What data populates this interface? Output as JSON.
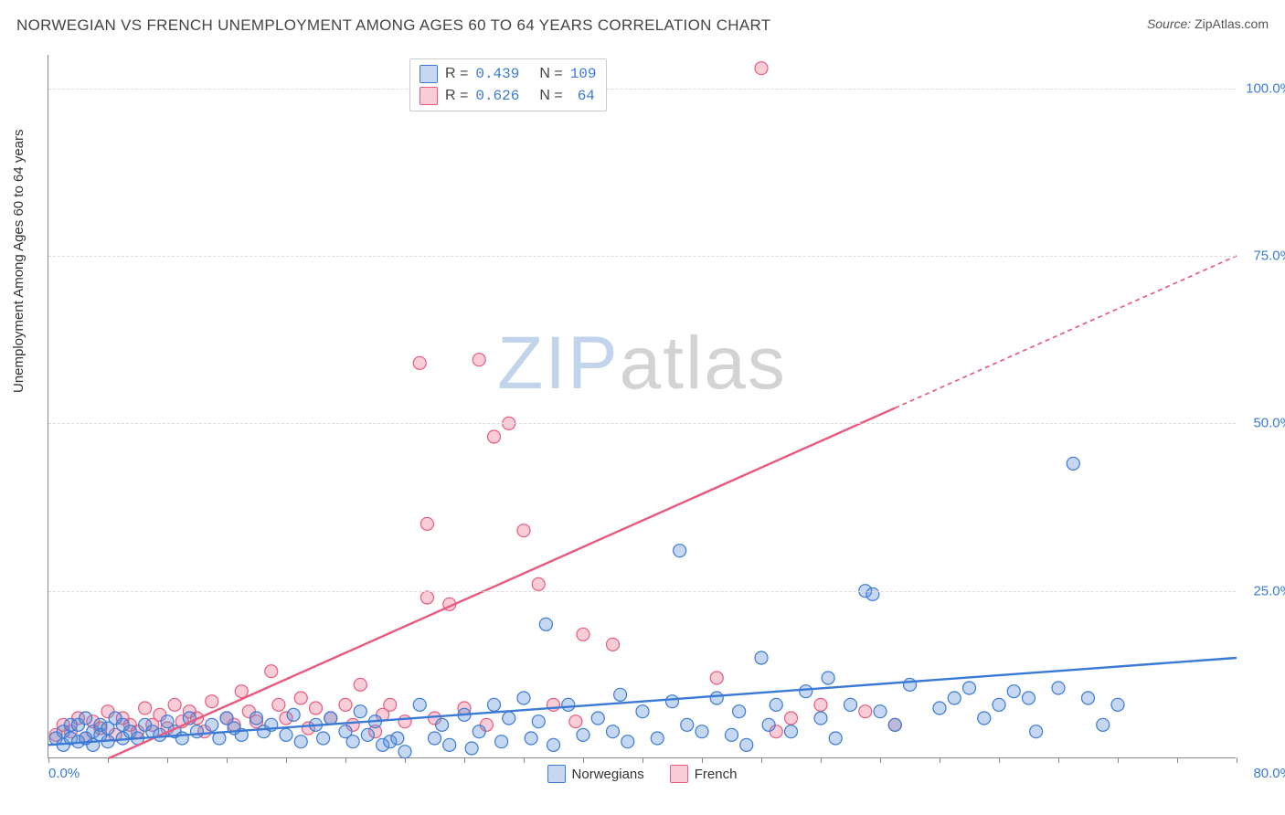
{
  "title": "NORWEGIAN VS FRENCH UNEMPLOYMENT AMONG AGES 60 TO 64 YEARS CORRELATION CHART",
  "source_label": "Source:",
  "source_value": "ZipAtlas.com",
  "y_axis_label": "Unemployment Among Ages 60 to 64 years",
  "watermark_a": "ZIP",
  "watermark_b": "atlas",
  "chart": {
    "type": "scatter",
    "background_color": "#ffffff",
    "grid_color": "#dddddd",
    "grid_dash": "4,4",
    "axis_color": "#888888",
    "xlim": [
      0,
      80
    ],
    "ylim": [
      0,
      105
    ],
    "xtick_major": [
      0,
      80
    ],
    "xtick_minor_step": 4,
    "xtick_labels": [
      "0.0%",
      "80.0%"
    ],
    "ytick_positions": [
      25,
      50,
      75,
      100
    ],
    "ytick_labels": [
      "25.0%",
      "50.0%",
      "75.0%",
      "100.0%"
    ],
    "tick_label_color": "#3a7ad6",
    "tick_label_fontsize": 15,
    "title_fontsize": 17,
    "title_color": "#444444",
    "marker_radius": 7,
    "marker_stroke_width": 1.2,
    "marker_fill_opacity": 0.35,
    "line_width_solid": 2.4,
    "line_dash_extrapolate": "5,4"
  },
  "series": {
    "norwegians": {
      "label": "Norwegians",
      "color": "#5b8fd6",
      "fill": "rgba(91,143,214,0.35)",
      "stroke": "#3a7ad6",
      "R": "0.439",
      "N": "109",
      "trend": {
        "x1": 0,
        "y1": 2,
        "x2": 80,
        "y2": 15,
        "solid_until_x": 80
      },
      "points": [
        [
          0.5,
          3
        ],
        [
          1,
          4
        ],
        [
          1,
          2
        ],
        [
          1.5,
          5
        ],
        [
          1.5,
          3
        ],
        [
          2,
          5
        ],
        [
          2,
          2.5
        ],
        [
          2.5,
          6
        ],
        [
          2.5,
          3
        ],
        [
          3,
          4
        ],
        [
          3,
          2
        ],
        [
          3.5,
          5
        ],
        [
          3.5,
          3.5
        ],
        [
          4,
          4.5
        ],
        [
          4,
          2.5
        ],
        [
          4.5,
          6
        ],
        [
          5,
          3
        ],
        [
          5,
          5
        ],
        [
          5.5,
          4
        ],
        [
          6,
          3
        ],
        [
          6.5,
          5
        ],
        [
          7,
          4
        ],
        [
          7.5,
          3.5
        ],
        [
          8,
          5.5
        ],
        [
          8.5,
          4
        ],
        [
          9,
          3
        ],
        [
          9.5,
          6
        ],
        [
          10,
          4
        ],
        [
          11,
          5
        ],
        [
          11.5,
          3
        ],
        [
          12,
          6
        ],
        [
          12.5,
          4.5
        ],
        [
          13,
          3.5
        ],
        [
          14,
          6
        ],
        [
          14.5,
          4
        ],
        [
          15,
          5
        ],
        [
          16,
          3.5
        ],
        [
          16.5,
          6.5
        ],
        [
          17,
          2.5
        ],
        [
          18,
          5
        ],
        [
          18.5,
          3
        ],
        [
          19,
          6
        ],
        [
          20,
          4
        ],
        [
          20.5,
          2.5
        ],
        [
          21,
          7
        ],
        [
          21.5,
          3.5
        ],
        [
          22,
          5.5
        ],
        [
          22.5,
          2
        ],
        [
          23,
          2.5
        ],
        [
          23.5,
          3
        ],
        [
          24,
          1
        ],
        [
          25,
          8
        ],
        [
          26,
          3
        ],
        [
          26.5,
          5
        ],
        [
          27,
          2
        ],
        [
          28,
          6.5
        ],
        [
          28.5,
          1.5
        ],
        [
          29,
          4
        ],
        [
          30,
          8
        ],
        [
          30.5,
          2.5
        ],
        [
          31,
          6
        ],
        [
          32,
          9
        ],
        [
          32.5,
          3
        ],
        [
          33,
          5.5
        ],
        [
          33.5,
          20
        ],
        [
          34,
          2
        ],
        [
          35,
          8
        ],
        [
          36,
          3.5
        ],
        [
          37,
          6
        ],
        [
          38,
          4
        ],
        [
          38.5,
          9.5
        ],
        [
          39,
          2.5
        ],
        [
          40,
          7
        ],
        [
          41,
          3
        ],
        [
          42,
          8.5
        ],
        [
          42.5,
          31
        ],
        [
          43,
          5
        ],
        [
          44,
          4
        ],
        [
          45,
          9
        ],
        [
          46,
          3.5
        ],
        [
          46.5,
          7
        ],
        [
          47,
          2
        ],
        [
          48,
          15
        ],
        [
          48.5,
          5
        ],
        [
          49,
          8
        ],
        [
          50,
          4
        ],
        [
          51,
          10
        ],
        [
          52,
          6
        ],
        [
          52.5,
          12
        ],
        [
          53,
          3
        ],
        [
          54,
          8
        ],
        [
          55,
          25
        ],
        [
          55.5,
          24.5
        ],
        [
          56,
          7
        ],
        [
          57,
          5
        ],
        [
          58,
          11
        ],
        [
          60,
          7.5
        ],
        [
          61,
          9
        ],
        [
          62,
          10.5
        ],
        [
          63,
          6
        ],
        [
          64,
          8
        ],
        [
          65,
          10
        ],
        [
          66,
          9
        ],
        [
          66.5,
          4
        ],
        [
          68,
          10.5
        ],
        [
          69,
          44
        ],
        [
          70,
          9
        ],
        [
          71,
          5
        ],
        [
          72,
          8
        ]
      ]
    },
    "french": {
      "label": "French",
      "color": "#e85a7d",
      "fill": "rgba(232,90,125,0.30)",
      "stroke": "#e85a7d",
      "R": "0.626",
      "N": "64",
      "trend": {
        "x1": 0,
        "y1": -4,
        "x2": 80,
        "y2": 75,
        "solid_until_x": 57
      },
      "points": [
        [
          0.5,
          3.5
        ],
        [
          1,
          5
        ],
        [
          1.5,
          4
        ],
        [
          2,
          6
        ],
        [
          2.5,
          3
        ],
        [
          3,
          5.5
        ],
        [
          3.5,
          4.5
        ],
        [
          4,
          7
        ],
        [
          4.5,
          3.5
        ],
        [
          5,
          6
        ],
        [
          5.5,
          5
        ],
        [
          6,
          4
        ],
        [
          6.5,
          7.5
        ],
        [
          7,
          5
        ],
        [
          7.5,
          6.5
        ],
        [
          8,
          4.5
        ],
        [
          8.5,
          8
        ],
        [
          9,
          5.5
        ],
        [
          9.5,
          7
        ],
        [
          10,
          6
        ],
        [
          10.5,
          4
        ],
        [
          11,
          8.5
        ],
        [
          12,
          6
        ],
        [
          12.5,
          5
        ],
        [
          13,
          10
        ],
        [
          13.5,
          7
        ],
        [
          14,
          5.5
        ],
        [
          15,
          13
        ],
        [
          15.5,
          8
        ],
        [
          16,
          6
        ],
        [
          17,
          9
        ],
        [
          17.5,
          4.5
        ],
        [
          18,
          7.5
        ],
        [
          19,
          6
        ],
        [
          20,
          8
        ],
        [
          20.5,
          5
        ],
        [
          21,
          11
        ],
        [
          22,
          4
        ],
        [
          22.5,
          6.5
        ],
        [
          23,
          8
        ],
        [
          24,
          5.5
        ],
        [
          25,
          59
        ],
        [
          25.5,
          35
        ],
        [
          25.5,
          24
        ],
        [
          26,
          6
        ],
        [
          27,
          23
        ],
        [
          28,
          7.5
        ],
        [
          29,
          59.5
        ],
        [
          29.5,
          5
        ],
        [
          30,
          48
        ],
        [
          31,
          50
        ],
        [
          32,
          34
        ],
        [
          33,
          26
        ],
        [
          34,
          8
        ],
        [
          35.5,
          5.5
        ],
        [
          36,
          18.5
        ],
        [
          38,
          17
        ],
        [
          45,
          12
        ],
        [
          48,
          103
        ],
        [
          49,
          4
        ],
        [
          50,
          6
        ],
        [
          52,
          8
        ],
        [
          55,
          7
        ],
        [
          57,
          5
        ]
      ]
    }
  },
  "legend_top": {
    "r_label": "R =",
    "n_label": "N ="
  }
}
